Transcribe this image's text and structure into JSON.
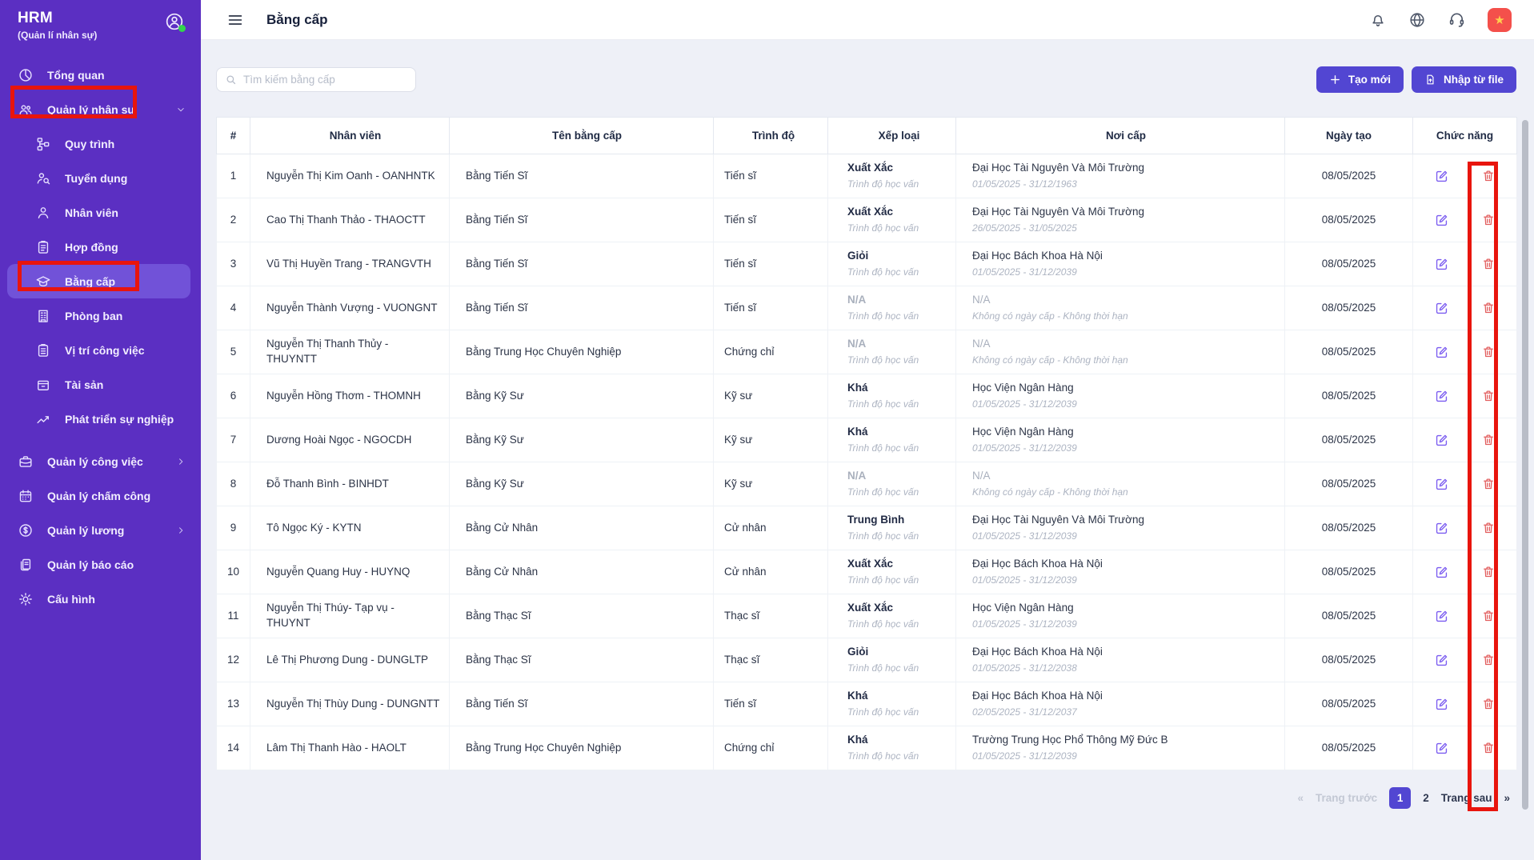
{
  "sidebar": {
    "app_title": "HRM",
    "app_subtitle": "(Quản lí nhân sự)",
    "items": [
      {
        "id": "tong-quan",
        "label": "Tổng quan",
        "icon": "pie-chart-icon"
      },
      {
        "id": "quan-ly-nhan-su",
        "label": "Quản lý nhân sự",
        "icon": "team-icon",
        "chevron": "down"
      },
      {
        "id": "quy-trinh",
        "label": "Quy trình",
        "icon": "workflow-icon",
        "sub": true
      },
      {
        "id": "tuyen-dung",
        "label": "Tuyển dụng",
        "icon": "person-search-icon",
        "sub": true
      },
      {
        "id": "nhan-vien",
        "label": "Nhân viên",
        "icon": "person-icon",
        "sub": true
      },
      {
        "id": "hop-dong",
        "label": "Hợp đồng",
        "icon": "contract-icon",
        "sub": true
      },
      {
        "id": "bang-cap",
        "label": "Bằng cấp",
        "icon": "graduation-cap-icon",
        "sub": true,
        "active": true
      },
      {
        "id": "phong-ban",
        "label": "Phòng ban",
        "icon": "building-icon",
        "sub": true
      },
      {
        "id": "vi-tri-cong-viec",
        "label": "Vị trí công việc",
        "icon": "clipboard-list-icon",
        "sub": true
      },
      {
        "id": "tai-san",
        "label": "Tài sản",
        "icon": "asset-box-icon",
        "sub": true
      },
      {
        "id": "phat-trien-su-nghiep",
        "label": "Phát triển sự nghiệp",
        "icon": "trend-up-icon",
        "sub": true
      },
      {
        "id": "quan-ly-cong-viec",
        "label": "Quản lý công việc",
        "icon": "briefcase-icon",
        "chevron": "right",
        "gapBefore": true
      },
      {
        "id": "quan-ly-cham-cong",
        "label": "Quản lý chấm công",
        "icon": "calendar-icon"
      },
      {
        "id": "quan-ly-luong",
        "label": "Quản lý lương",
        "icon": "dollar-circle-icon",
        "chevron": "right"
      },
      {
        "id": "quan-ly-bao-cao",
        "label": "Quản lý báo cáo",
        "icon": "report-icon"
      },
      {
        "id": "cau-hinh",
        "label": "Cấu hình",
        "icon": "gear-icon"
      }
    ]
  },
  "topbar": {
    "title": "Bằng cấp",
    "icons": [
      "bell-icon",
      "globe-icon",
      "support-icon",
      "vietnam-flag-icon"
    ],
    "flag_star": "★"
  },
  "toolbar": {
    "search_placeholder": "Tìm kiếm bằng cấp",
    "create_label": "Tạo mới",
    "import_label": "Nhập từ file"
  },
  "table": {
    "columns": [
      "#",
      "Nhân viên",
      "Tên bằng cấp",
      "Trình độ",
      "Xếp loại",
      "Nơi cấp",
      "Ngày tạo",
      "Chức năng"
    ],
    "grade_note": "Trình độ học vấn",
    "rows": [
      {
        "num": "1",
        "employee": "Nguyễn Thị Kim Oanh - OANHNTK",
        "degree": "Bằng Tiến Sĩ",
        "level": "Tiến sĩ",
        "grade": "Xuất Xắc",
        "issuer": "Đại Học Tài Nguyên Và Môi Trường",
        "period": "01/05/2025 - 31/12/1963",
        "created": "08/05/2025"
      },
      {
        "num": "2",
        "employee": "Cao Thị Thanh Thảo - THAOCTT",
        "degree": "Bằng Tiến Sĩ",
        "level": "Tiến sĩ",
        "grade": "Xuất Xắc",
        "issuer": "Đại Học Tài Nguyên Và Môi Trường",
        "period": "26/05/2025 - 31/05/2025",
        "created": "08/05/2025"
      },
      {
        "num": "3",
        "employee": "Vũ Thị Huyền Trang - TRANGVTH",
        "degree": "Bằng Tiến Sĩ",
        "level": "Tiến sĩ",
        "grade": "Giỏi",
        "issuer": "Đại Học Bách Khoa Hà Nội",
        "period": "01/05/2025 - 31/12/2039",
        "created": "08/05/2025"
      },
      {
        "num": "4",
        "employee": "Nguyễn Thành Vượng - VUONGNT",
        "degree": "Bằng Tiến Sĩ",
        "level": "Tiến sĩ",
        "grade": "N/A",
        "issuer": "N/A",
        "period": "Không có ngày cấp - Không thời hạn",
        "created": "08/05/2025"
      },
      {
        "num": "5",
        "employee": "Nguyễn Thị Thanh Thủy - THUYNTT",
        "degree": "Bằng Trung Học Chuyên Nghiệp",
        "level": "Chứng chỉ",
        "grade": "N/A",
        "issuer": "N/A",
        "period": "Không có ngày cấp - Không thời hạn",
        "created": "08/05/2025"
      },
      {
        "num": "6",
        "employee": "Nguyễn Hồng Thơm - THOMNH",
        "degree": "Bằng Kỹ Sư",
        "level": "Kỹ sư",
        "grade": "Khá",
        "issuer": "Học Viện Ngân Hàng",
        "period": "01/05/2025 - 31/12/2039",
        "created": "08/05/2025"
      },
      {
        "num": "7",
        "employee": "Dương Hoài Ngọc - NGOCDH",
        "degree": "Bằng Kỹ Sư",
        "level": "Kỹ sư",
        "grade": "Khá",
        "issuer": "Học Viện Ngân Hàng",
        "period": "01/05/2025 - 31/12/2039",
        "created": "08/05/2025"
      },
      {
        "num": "8",
        "employee": "Đỗ Thanh Bình - BINHDT",
        "degree": "Bằng Kỹ Sư",
        "level": "Kỹ sư",
        "grade": "N/A",
        "issuer": "N/A",
        "period": "Không có ngày cấp - Không thời hạn",
        "created": "08/05/2025"
      },
      {
        "num": "9",
        "employee": "Tô Ngọc Ký - KYTN",
        "degree": "Bằng Cử Nhân",
        "level": "Cử nhân",
        "grade": "Trung Bình",
        "issuer": "Đại Học Tài Nguyên Và Môi Trường",
        "period": "01/05/2025 - 31/12/2039",
        "created": "08/05/2025"
      },
      {
        "num": "10",
        "employee": "Nguyễn Quang Huy - HUYNQ",
        "degree": "Bằng Cử Nhân",
        "level": "Cử nhân",
        "grade": "Xuất Xắc",
        "issuer": "Đại Học Bách Khoa Hà Nội",
        "period": "01/05/2025 - 31/12/2039",
        "created": "08/05/2025"
      },
      {
        "num": "11",
        "employee": "Nguyễn Thị Thúy- Tạp vụ - THUYNT",
        "degree": "Bằng Thạc Sĩ",
        "level": "Thạc sĩ",
        "grade": "Xuất Xắc",
        "issuer": "Học Viện Ngân Hàng",
        "period": "01/05/2025 - 31/12/2039",
        "created": "08/05/2025"
      },
      {
        "num": "12",
        "employee": "Lê Thị Phương Dung - DUNGLTP",
        "degree": "Bằng Thạc Sĩ",
        "level": "Thạc sĩ",
        "grade": "Giỏi",
        "issuer": "Đại Học Bách Khoa Hà Nội",
        "period": "01/05/2025 - 31/12/2038",
        "created": "08/05/2025"
      },
      {
        "num": "13",
        "employee": "Nguyễn Thị Thùy Dung - DUNGNTT",
        "degree": "Bằng Tiến Sĩ",
        "level": "Tiến sĩ",
        "grade": "Khá",
        "issuer": "Đại Học Bách Khoa Hà Nội",
        "period": "02/05/2025 - 31/12/2037",
        "created": "08/05/2025"
      },
      {
        "num": "14",
        "employee": "Lâm Thị Thanh Hào - HAOLT",
        "degree": "Bằng Trung Học Chuyên Nghiệp",
        "level": "Chứng chỉ",
        "grade": "Khá",
        "issuer": "Trường Trung Học Phổ Thông Mỹ Đức B",
        "period": "01/05/2025 - 31/12/2039",
        "created": "08/05/2025"
      }
    ]
  },
  "pagination": {
    "prev_arrow": "«",
    "prev_label": "Trang trước",
    "pages": [
      "1",
      "2"
    ],
    "active_page": "1",
    "next_label": "Trang sau",
    "next_arrow": "»"
  },
  "colors": {
    "sidebar": "#5b2fc2",
    "sidebar_active": "#7152d8",
    "accent_button": "#5246d2",
    "edit_icon": "#7b5cf0",
    "delete_icon": "#e25d5d",
    "annotation_red": "#e8150d",
    "flag_bg": "#f4504b",
    "flag_star": "#ffd04d"
  }
}
